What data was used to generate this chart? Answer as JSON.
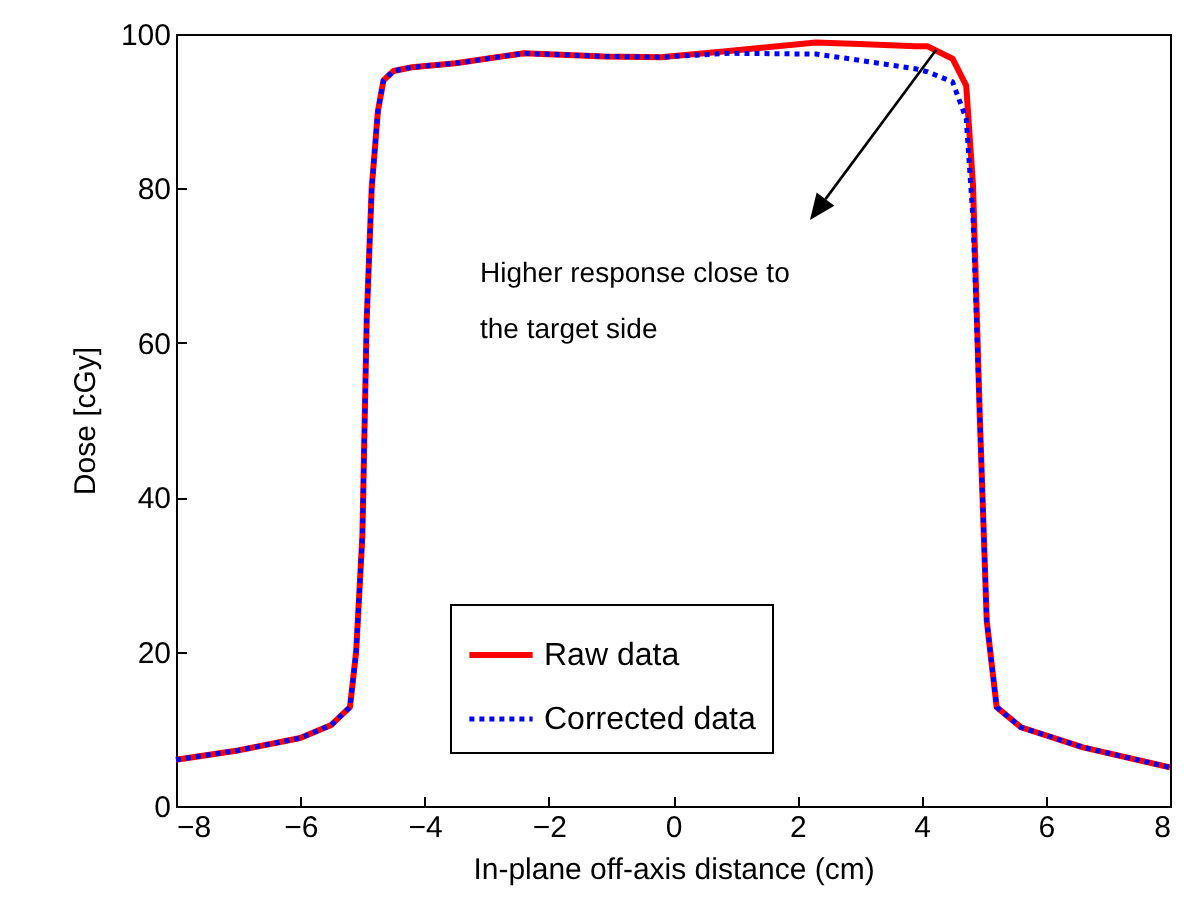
{
  "chart_data": {
    "type": "line",
    "xlabel": "In-plane off-axis distance (cm)",
    "ylabel": "Dose [cGy]",
    "x": [
      -8,
      -7,
      -6,
      -5.5,
      -5.2,
      -5.1,
      -5.0,
      -4.93,
      -4.85,
      -4.75,
      -4.66,
      -4.5,
      -4.2,
      -3.5,
      -2.4,
      -1.1,
      -0.2,
      0.9,
      2.3,
      3.0,
      3.9,
      4.1,
      4.5,
      4.72,
      4.83,
      4.94,
      5.05,
      5.21,
      5.6,
      6.6,
      8
    ],
    "series": [
      {
        "name": "Raw data",
        "color": "#ff0000",
        "line_style": "solid",
        "values": [
          6,
          7.2,
          8.8,
          10.5,
          12.8,
          20,
          35,
          63,
          80,
          90,
          94,
          95.2,
          95.7,
          96.2,
          97.5,
          97.1,
          97.0,
          97.8,
          98.9,
          98.7,
          98.4,
          98.4,
          96.8,
          93.3,
          80.3,
          50,
          24,
          12.8,
          10.2,
          7.6,
          5
        ]
      },
      {
        "name": "Corrected data",
        "color": "#0000ff",
        "line_style": "dotted",
        "values": [
          6,
          7.2,
          8.8,
          10.5,
          12.8,
          20,
          35,
          63,
          80,
          90,
          94,
          95.2,
          95.7,
          96.2,
          97.5,
          97.1,
          97.0,
          97.5,
          97.4,
          96.6,
          95.5,
          95.1,
          93.8,
          89,
          76,
          50,
          24,
          12.8,
          10.2,
          7.6,
          5
        ]
      }
    ],
    "xlim": [
      -8,
      8
    ],
    "xticks": [
      -8,
      -6,
      -4,
      -2,
      0,
      2,
      4,
      6,
      8
    ],
    "ylim": [
      0,
      100
    ],
    "yticks": [
      0,
      20,
      40,
      60,
      80,
      100
    ],
    "grid": false,
    "legend": "bottom",
    "marker": "none",
    "annotations": [
      "Higher response close to\nthe target side"
    ]
  }
}
